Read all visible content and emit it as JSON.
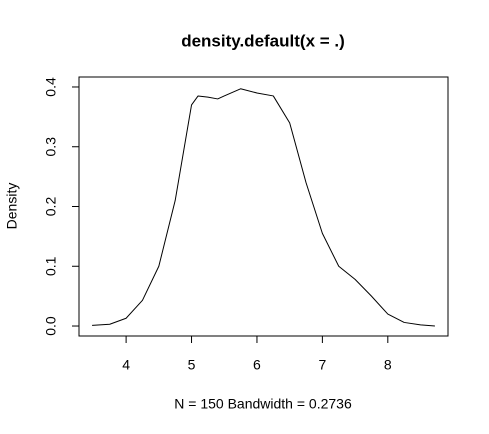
{
  "chart_data": {
    "type": "line",
    "title": "density.default(x = .)",
    "x_label": "N = 150   Bandwidth = 0.2736",
    "y_label": "Density",
    "x": [
      3.48,
      3.75,
      4.0,
      4.25,
      4.5,
      4.75,
      5.0,
      5.1,
      5.25,
      5.4,
      5.5,
      5.75,
      6.0,
      6.25,
      6.5,
      6.75,
      7.0,
      7.25,
      7.5,
      7.75,
      8.0,
      8.25,
      8.5,
      8.72
    ],
    "values": [
      0.001,
      0.003,
      0.013,
      0.043,
      0.1,
      0.21,
      0.37,
      0.385,
      0.383,
      0.38,
      0.385,
      0.397,
      0.39,
      0.385,
      0.34,
      0.24,
      0.155,
      0.1,
      0.078,
      0.05,
      0.02,
      0.006,
      0.002,
      0.0
    ],
    "color": "#000000",
    "xlim": [
      3.28,
      8.92
    ],
    "ylim": [
      -0.0167,
      0.4167
    ],
    "xticks": [
      4,
      5,
      6,
      7,
      8
    ],
    "yticks": [
      {
        "value": 0,
        "label": "0.0"
      },
      0.1,
      0.2,
      0.3,
      0.4
    ]
  }
}
